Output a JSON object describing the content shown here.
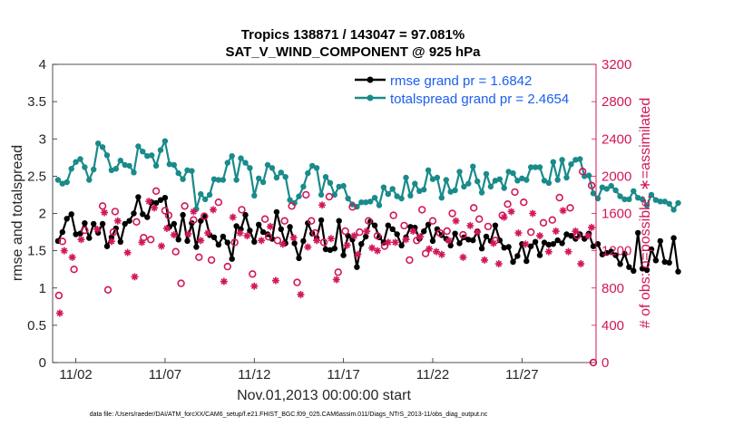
{
  "chart_data": {
    "type": "line",
    "title_line1": "Tropics 138871 / 143047 = 97.081%",
    "title_line2": "SAT_V_WIND_COMPONENT @ 925 hPa",
    "xlabel": "Nov.01,2013 00:00:00 start",
    "ylabel_left": "rmse and totalspread",
    "ylabel_right": "# of obs: o=possible; ∗=assimilated",
    "footer": "data file: /Users/raeder/DAI/ATM_forcXX/CAM6_setup/f.e21.FHIST_BGC.f09_025.CAM6assim.011/Diags_NTrS_2013-11/obs_diag_output.nc",
    "xlim": [
      0.7,
      31.15
    ],
    "ylim_left": [
      0,
      4
    ],
    "ylim_right": [
      0,
      3200
    ],
    "x_ticks": [
      2,
      7,
      12,
      17,
      22,
      27
    ],
    "x_tick_labels": [
      "11/02",
      "11/07",
      "11/12",
      "11/17",
      "11/22",
      "11/27"
    ],
    "y_ticks_left": [
      "0",
      "0.5",
      "1",
      "1.5",
      "2",
      "2.5",
      "3",
      "3.5",
      "4"
    ],
    "y_ticks_right": [
      "0",
      "400",
      "800",
      "1200",
      "1600",
      "2000",
      "2400",
      "2800",
      "3200"
    ],
    "legend": [
      "rmse grand pr = 1.6842",
      "totalspread grand pr = 2.4654"
    ],
    "colors": {
      "rmse": "#000000",
      "spread": "#1a8a8a",
      "obs": "#d1175a",
      "legend_text": "#1b5ef0"
    },
    "x_start": 1.0,
    "x_step": 0.25,
    "series": [
      {
        "name": "rmse",
        "values": [
          1.63,
          1.75,
          1.93,
          1.99,
          1.72,
          1.73,
          1.87,
          1.67,
          1.86,
          1.74,
          1.86,
          1.56,
          1.68,
          1.8,
          1.62,
          1.86,
          1.9,
          2.0,
          2.22,
          1.99,
          1.95,
          2.15,
          2.14,
          2.18,
          2.21,
          1.82,
          1.86,
          1.65,
          1.98,
          1.63,
          1.87,
          1.55,
          1.9,
          1.96,
          1.71,
          1.68,
          1.58,
          1.69,
          1.61,
          1.39,
          1.83,
          1.79,
          1.98,
          1.77,
          1.62,
          1.85,
          1.75,
          1.72,
          1.66,
          2.02,
          1.79,
          1.6,
          1.82,
          1.6,
          1.4,
          1.63,
          1.87,
          1.73,
          1.67,
          1.91,
          1.52,
          1.51,
          1.53,
          1.9,
          1.44,
          1.7,
          1.65,
          1.28,
          1.59,
          1.69,
          1.89,
          1.84,
          1.68,
          1.61,
          1.84,
          1.79,
          1.72,
          1.57,
          1.68,
          1.82,
          1.81,
          1.66,
          1.76,
          1.85,
          1.63,
          1.79,
          1.71,
          1.66,
          1.57,
          1.73,
          1.6,
          1.68,
          1.65,
          1.64,
          1.76,
          1.53,
          1.69,
          1.63,
          1.84,
          1.64,
          1.54,
          1.55,
          1.35,
          1.43,
          1.59,
          1.36,
          1.56,
          1.62,
          1.44,
          1.61,
          1.58,
          1.59,
          1.64,
          1.6,
          1.72,
          1.7,
          1.66,
          1.72,
          1.66,
          1.73,
          1.56,
          1.59,
          1.45,
          1.47,
          1.49,
          1.44,
          1.32,
          1.46,
          1.28,
          1.23,
          1.74,
          1.26,
          1.24,
          1.52,
          1.37,
          1.63,
          1.35,
          1.34,
          1.67,
          1.22
        ]
      },
      {
        "name": "totalspread",
        "values": [
          2.45,
          2.4,
          2.42,
          2.6,
          2.69,
          2.73,
          2.62,
          2.45,
          2.59,
          2.94,
          2.89,
          2.78,
          2.58,
          2.6,
          2.71,
          2.65,
          2.64,
          2.55,
          2.9,
          2.83,
          2.77,
          2.78,
          2.64,
          2.85,
          2.97,
          2.66,
          2.65,
          2.54,
          2.46,
          2.58,
          2.57,
          2.06,
          2.26,
          2.19,
          2.25,
          2.46,
          2.45,
          2.45,
          2.68,
          2.77,
          2.45,
          2.74,
          2.68,
          2.61,
          2.24,
          2.47,
          2.42,
          2.65,
          2.61,
          2.48,
          2.55,
          2.49,
          2.18,
          2.14,
          2.23,
          2.36,
          2.54,
          2.64,
          2.61,
          2.25,
          2.49,
          2.41,
          2.25,
          2.36,
          2.37,
          2.2,
          2.12,
          2.09,
          2.15,
          2.15,
          2.16,
          2.21,
          2.11,
          2.35,
          2.26,
          2.33,
          2.23,
          2.2,
          2.48,
          2.24,
          2.4,
          2.3,
          2.32,
          2.58,
          2.46,
          2.48,
          2.21,
          2.45,
          2.29,
          2.31,
          2.56,
          2.36,
          2.4,
          2.63,
          2.43,
          2.28,
          2.53,
          2.36,
          2.44,
          2.46,
          2.34,
          2.56,
          2.54,
          2.44,
          2.47,
          2.45,
          2.62,
          2.62,
          2.62,
          2.44,
          2.41,
          2.69,
          2.45,
          2.72,
          2.48,
          2.66,
          2.72,
          2.73,
          2.5,
          2.51,
          2.27,
          2.2,
          2.35,
          2.33,
          2.37,
          2.31,
          2.23,
          2.19,
          2.19,
          2.3,
          2.21,
          2.19,
          2.11,
          2.25,
          2.18,
          2.16,
          2.16,
          2.13,
          2.05,
          2.14
        ]
      }
    ],
    "obs_series": [
      {
        "name": "possible",
        "marker": "o",
        "points": [
          [
            1.05,
            720
          ],
          [
            1.25,
            1300
          ],
          [
            1.9,
            1000
          ],
          [
            2.5,
            1420
          ],
          [
            3.5,
            1680
          ],
          [
            3.8,
            780
          ],
          [
            4.1,
            1400
          ],
          [
            4.2,
            1620
          ],
          [
            5.4,
            1510
          ],
          [
            5.8,
            1340
          ],
          [
            6.2,
            1320
          ],
          [
            6.5,
            1840
          ],
          [
            7.0,
            1630
          ],
          [
            7.2,
            1580
          ],
          [
            7.6,
            1190
          ],
          [
            7.9,
            850
          ],
          [
            8.1,
            1680
          ],
          [
            8.6,
            1530
          ],
          [
            8.9,
            1130
          ],
          [
            9.2,
            1570
          ],
          [
            9.6,
            1100
          ],
          [
            10.0,
            1720
          ],
          [
            10.5,
            1030
          ],
          [
            10.9,
            1290
          ],
          [
            11.3,
            1640
          ],
          [
            11.9,
            950
          ],
          [
            12.6,
            1540
          ],
          [
            12.8,
            1350
          ],
          [
            13.3,
            1310
          ],
          [
            13.7,
            1520
          ],
          [
            14.1,
            1680
          ],
          [
            14.4,
            860
          ],
          [
            14.9,
            1800
          ],
          [
            15.2,
            1520
          ],
          [
            15.4,
            1390
          ],
          [
            15.9,
            1290
          ],
          [
            16.2,
            1780
          ],
          [
            16.7,
            970
          ],
          [
            17.1,
            1410
          ],
          [
            17.5,
            1670
          ],
          [
            17.9,
            1400
          ],
          [
            18.4,
            1520
          ],
          [
            18.9,
            1360
          ],
          [
            19.3,
            1250
          ],
          [
            19.8,
            1580
          ],
          [
            20.4,
            1470
          ],
          [
            20.7,
            1100
          ],
          [
            21.1,
            1310
          ],
          [
            21.4,
            1640
          ],
          [
            21.6,
            1170
          ],
          [
            22.0,
            1520
          ],
          [
            22.4,
            1390
          ],
          [
            22.8,
            1410
          ],
          [
            23.1,
            1600
          ],
          [
            23.7,
            1370
          ],
          [
            24.3,
            1660
          ],
          [
            24.6,
            1540
          ],
          [
            25.1,
            1460
          ],
          [
            25.5,
            1310
          ],
          [
            25.9,
            1580
          ],
          [
            26.2,
            1700
          ],
          [
            26.6,
            1830
          ],
          [
            27.1,
            1720
          ],
          [
            27.5,
            1400
          ],
          [
            28.2,
            1500
          ],
          [
            28.7,
            1530
          ],
          [
            29.1,
            1770
          ],
          [
            29.7,
            1660
          ],
          [
            30.1,
            1360
          ],
          [
            30.4,
            2050
          ],
          [
            30.9,
            1900
          ],
          [
            31.0,
            0
          ]
        ]
      },
      {
        "name": "assimilated",
        "marker": "*",
        "points": [
          [
            1.1,
            530
          ],
          [
            1.35,
            1200
          ],
          [
            1.8,
            1130
          ],
          [
            2.3,
            1320
          ],
          [
            3.2,
            1430
          ],
          [
            3.6,
            1610
          ],
          [
            4.0,
            1300
          ],
          [
            4.35,
            1520
          ],
          [
            4.9,
            1180
          ],
          [
            5.3,
            920
          ],
          [
            5.7,
            1290
          ],
          [
            6.1,
            1730
          ],
          [
            6.4,
            1660
          ],
          [
            6.8,
            1250
          ],
          [
            7.1,
            1440
          ],
          [
            7.5,
            1370
          ],
          [
            8.3,
            1380
          ],
          [
            8.6,
            1620
          ],
          [
            9.0,
            1310
          ],
          [
            9.4,
            1390
          ],
          [
            9.7,
            1640
          ],
          [
            10.3,
            870
          ],
          [
            10.8,
            1560
          ],
          [
            11.2,
            1390
          ],
          [
            11.6,
            1360
          ],
          [
            12.0,
            820
          ],
          [
            12.4,
            1310
          ],
          [
            12.9,
            1460
          ],
          [
            13.2,
            880
          ],
          [
            13.6,
            1270
          ],
          [
            14.2,
            1340
          ],
          [
            14.6,
            730
          ],
          [
            15.0,
            1240
          ],
          [
            15.5,
            1310
          ],
          [
            15.8,
            1690
          ],
          [
            16.3,
            1330
          ],
          [
            16.6,
            890
          ],
          [
            17.2,
            1260
          ],
          [
            17.6,
            1360
          ],
          [
            17.8,
            1160
          ],
          [
            18.3,
            1410
          ],
          [
            18.6,
            1230
          ],
          [
            18.9,
            1200
          ],
          [
            19.5,
            1290
          ],
          [
            19.9,
            1290
          ],
          [
            20.5,
            1320
          ],
          [
            20.9,
            1410
          ],
          [
            21.3,
            1350
          ],
          [
            21.8,
            1220
          ],
          [
            22.2,
            1190
          ],
          [
            22.5,
            1160
          ],
          [
            22.9,
            1310
          ],
          [
            23.3,
            1520
          ],
          [
            23.7,
            1130
          ],
          [
            24.1,
            1470
          ],
          [
            24.5,
            1400
          ],
          [
            24.9,
            1100
          ],
          [
            25.4,
            1280
          ],
          [
            25.7,
            1060
          ],
          [
            26.0,
            1560
          ],
          [
            26.4,
            1620
          ],
          [
            26.8,
            1390
          ],
          [
            27.2,
            1270
          ],
          [
            27.6,
            1600
          ],
          [
            28.0,
            1360
          ],
          [
            28.5,
            1190
          ],
          [
            28.9,
            1410
          ],
          [
            29.3,
            1630
          ],
          [
            29.6,
            1190
          ],
          [
            30.0,
            1410
          ],
          [
            30.3,
            1060
          ],
          [
            30.7,
            1360
          ],
          [
            30.9,
            1450
          ]
        ]
      }
    ]
  }
}
